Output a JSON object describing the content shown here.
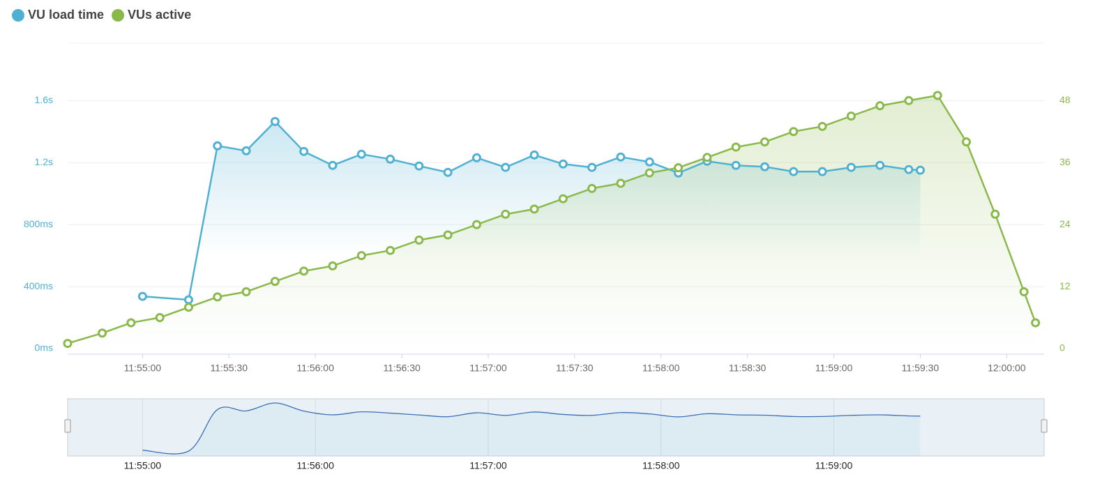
{
  "chart_data": {
    "type": "line",
    "legend": "top-left",
    "grid": true,
    "xlim": [
      "11:54:34",
      "12:00:13"
    ],
    "xticks": [
      "11:55:00",
      "11:55:30",
      "11:56:00",
      "11:56:30",
      "11:57:00",
      "11:57:30",
      "11:58:00",
      "11:58:30",
      "11:59:00",
      "11:59:30",
      "12:00:00"
    ],
    "ylim": [
      0,
      1970
    ],
    "yticks": [
      {
        "value": 0,
        "label": "0ms"
      },
      {
        "value": 400,
        "label": "400ms"
      },
      {
        "value": 800,
        "label": "800ms"
      },
      {
        "value": 1200,
        "label": "1.2s"
      },
      {
        "value": 1600,
        "label": "1.6s"
      }
    ],
    "y2lim": [
      0,
      59.1
    ],
    "y2ticks": [
      0,
      12,
      24,
      36,
      48
    ],
    "series": [
      {
        "name": "VU load time",
        "color": "#4fb0d2",
        "x": [
          "11:55:00",
          "11:55:16",
          "11:55:26",
          "11:55:36",
          "11:55:46",
          "11:55:56",
          "11:56:06",
          "11:56:16",
          "11:56:26",
          "11:56:36",
          "11:56:46",
          "11:56:56",
          "11:57:06",
          "11:57:16",
          "11:57:26",
          "11:57:36",
          "11:57:46",
          "11:57:56",
          "11:58:06",
          "11:58:16",
          "11:58:26",
          "11:58:36",
          "11:58:46",
          "11:58:56",
          "11:59:06",
          "11:59:16",
          "11:59:26",
          "11:59:30"
        ],
        "values": [
          337,
          315,
          1308,
          1276,
          1465,
          1272,
          1182,
          1254,
          1222,
          1178,
          1137,
          1231,
          1169,
          1249,
          1191,
          1169,
          1236,
          1204,
          1133,
          1209,
          1182,
          1173,
          1142,
          1142,
          1169,
          1182,
          1155,
          1151
        ]
      },
      {
        "name": "VUs active",
        "color": "#8ab94b",
        "axis": "y2",
        "x": [
          "11:54:34",
          "11:54:46",
          "11:54:56",
          "11:55:06",
          "11:55:16",
          "11:55:26",
          "11:55:36",
          "11:55:46",
          "11:55:56",
          "11:56:06",
          "11:56:16",
          "11:56:26",
          "11:56:36",
          "11:56:46",
          "11:56:56",
          "11:57:06",
          "11:57:16",
          "11:57:26",
          "11:57:36",
          "11:57:46",
          "11:57:56",
          "11:58:06",
          "11:58:16",
          "11:58:26",
          "11:58:36",
          "11:58:46",
          "11:58:56",
          "11:59:06",
          "11:59:16",
          "11:59:26",
          "11:59:36",
          "11:59:46",
          "11:59:56",
          "12:00:06",
          "12:00:10"
        ],
        "values": [
          1,
          3,
          5,
          6,
          8,
          10,
          11,
          13,
          15,
          16,
          18,
          19,
          21,
          22,
          24,
          26,
          27,
          29,
          31,
          32,
          34,
          35,
          37,
          39,
          40,
          42,
          43,
          45,
          47,
          48,
          49,
          40,
          26,
          11,
          5
        ]
      }
    ],
    "navigator": {
      "xticks": [
        "11:55:00",
        "11:56:00",
        "11:57:00",
        "11:58:00",
        "11:59:00"
      ]
    }
  }
}
